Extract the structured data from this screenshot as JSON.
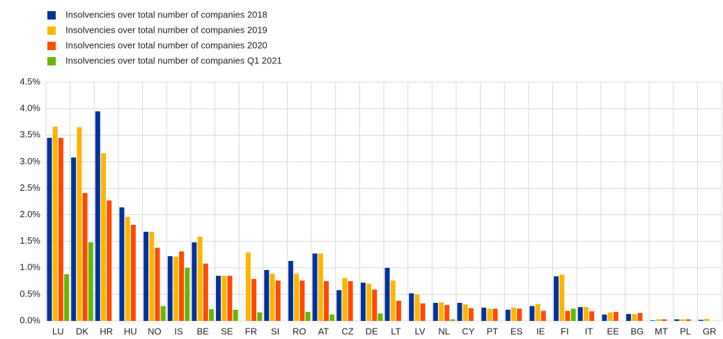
{
  "chart_data": {
    "type": "bar",
    "categories": [
      "LU",
      "DK",
      "HR",
      "HU",
      "NO",
      "IS",
      "BE",
      "SE",
      "FR",
      "SI",
      "RO",
      "AT",
      "CZ",
      "DE",
      "LT",
      "LV",
      "NL",
      "CY",
      "PT",
      "ES",
      "IE",
      "FI",
      "IT",
      "EE",
      "BG",
      "MT",
      "PL",
      "GR"
    ],
    "series": [
      {
        "name": "Insolvencies over total number of companies 2018",
        "color": "#003299",
        "values": [
          3.45,
          3.08,
          3.95,
          2.14,
          1.68,
          1.22,
          1.48,
          0.85,
          null,
          0.96,
          1.13,
          1.27,
          0.58,
          0.72,
          1.0,
          0.52,
          0.34,
          0.34,
          0.25,
          0.21,
          0.28,
          0.84,
          0.26,
          0.12,
          0.13,
          0.01,
          0.03,
          0.02
        ]
      },
      {
        "name": "Insolvencies over total number of companies 2019",
        "color": "#ffb400",
        "values": [
          3.66,
          3.65,
          3.16,
          1.96,
          1.68,
          1.21,
          1.59,
          0.85,
          1.29,
          0.89,
          0.89,
          1.27,
          0.81,
          0.7,
          0.76,
          0.5,
          0.35,
          0.31,
          0.23,
          0.25,
          0.32,
          0.87,
          0.26,
          0.16,
          0.13,
          0.03,
          0.03,
          0.04
        ]
      },
      {
        "name": "Insolvencies over total number of companies 2020",
        "color": "#ff4b00",
        "values": [
          3.45,
          2.41,
          2.27,
          1.81,
          1.38,
          1.31,
          1.08,
          0.85,
          0.79,
          0.76,
          0.76,
          0.75,
          0.75,
          0.59,
          0.38,
          0.33,
          0.3,
          0.24,
          0.23,
          0.23,
          0.19,
          0.19,
          0.18,
          0.17,
          0.15,
          0.03,
          0.03,
          null
        ]
      },
      {
        "name": "Insolvencies over total number of companies Q1 2021",
        "color": "#65b800",
        "values": [
          0.88,
          1.48,
          null,
          null,
          0.28,
          1.0,
          0.22,
          0.21,
          0.16,
          null,
          0.17,
          0.12,
          null,
          0.14,
          null,
          null,
          0.03,
          null,
          null,
          null,
          null,
          0.23,
          null,
          null,
          null,
          null,
          null,
          null
        ]
      }
    ],
    "ylim": [
      0,
      4.5
    ],
    "yticks": [
      {
        "value": 0,
        "label": "0.0%"
      },
      {
        "value": 0.5,
        "label": "0.5%"
      },
      {
        "value": 1,
        "label": "1.0%"
      },
      {
        "value": 1.5,
        "label": "1.5%"
      },
      {
        "value": 2,
        "label": "2.0%"
      },
      {
        "value": 2.5,
        "label": "2.5%"
      },
      {
        "value": 3,
        "label": "3.0%"
      },
      {
        "value": 3.5,
        "label": "3.5%"
      },
      {
        "value": 4,
        "label": "4.0%"
      },
      {
        "value": 4.5,
        "label": "4.5%"
      }
    ],
    "grid": true
  }
}
